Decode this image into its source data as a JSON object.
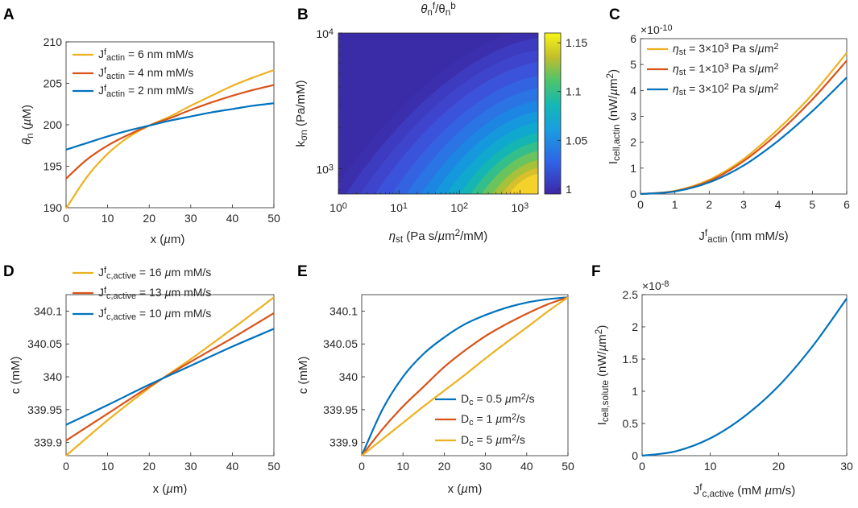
{
  "panels": [
    "A",
    "B",
    "C",
    "D",
    "E",
    "F"
  ],
  "colors": {
    "yellow": "#EDB120",
    "red": "#D95319",
    "blue": "#0072BD",
    "axis": "#262626"
  },
  "chart_data": [
    {
      "id": "A",
      "type": "line",
      "xlabel": "x (µm)",
      "ylabel": "θn (µM)",
      "xlim": [
        0,
        50
      ],
      "ylim": [
        190,
        210
      ],
      "xticks": [
        0,
        10,
        20,
        30,
        40,
        50
      ],
      "yticks": [
        190,
        195,
        200,
        205,
        210
      ],
      "legend_location": "top-left",
      "series": [
        {
          "name": "J^f_actin = 6 nm mM/s",
          "color": "#EDB120",
          "x": [
            0,
            5,
            10,
            15,
            20,
            25,
            30,
            35,
            40,
            45,
            50
          ],
          "y": [
            189.9,
            193.7,
            196.5,
            198.5,
            199.9,
            201.0,
            202.3,
            203.5,
            204.7,
            205.7,
            206.6
          ]
        },
        {
          "name": "J^f_actin = 4 nm mM/s",
          "color": "#D95319",
          "x": [
            0,
            5,
            10,
            15,
            20,
            25,
            30,
            35,
            40,
            45,
            50
          ],
          "y": [
            193.5,
            195.8,
            197.5,
            198.8,
            199.9,
            200.8,
            201.8,
            202.7,
            203.5,
            204.2,
            204.8
          ]
        },
        {
          "name": "J^f_actin = 2 nm mM/s",
          "color": "#0072BD",
          "x": [
            0,
            5,
            10,
            15,
            20,
            25,
            30,
            35,
            40,
            45,
            50
          ],
          "y": [
            197.0,
            197.8,
            198.6,
            199.3,
            199.9,
            200.5,
            201.0,
            201.5,
            201.9,
            202.3,
            202.6
          ]
        }
      ]
    },
    {
      "id": "B",
      "type": "heatmap",
      "title": "θn^f/θn^b",
      "xlabel": "ηst (Pa s/µm²/mM)",
      "ylabel": "kσn (Pa/mM)",
      "xscale": "log",
      "yscale": "log",
      "xlim": [
        1,
        2000
      ],
      "ylim": [
        650,
        10000
      ],
      "xticks": [
        "10^0",
        "10^1",
        "10^2",
        "10^3"
      ],
      "yticks": [
        "10^3",
        "10^4"
      ],
      "colorbar": {
        "range": [
          0.995,
          1.16
        ],
        "ticks": [
          "1",
          "1.05",
          "1.1",
          "1.15"
        ]
      }
    },
    {
      "id": "C",
      "type": "line",
      "xlabel": "J^f_actin (nm mM/s)",
      "ylabel": "Icell,actin (nW/µm²)",
      "multiplier": "×10^-10",
      "xlim": [
        0,
        6
      ],
      "ylim": [
        0,
        6
      ],
      "xticks": [
        0,
        1,
        2,
        3,
        4,
        5,
        6
      ],
      "yticks": [
        0,
        1,
        2,
        3,
        4,
        5,
        6
      ],
      "legend_location": "top-left",
      "series": [
        {
          "name": "ηst = 3×10³ Pa s/µm²",
          "color": "#EDB120",
          "x": [
            0,
            1,
            2,
            3,
            4,
            5,
            6
          ],
          "y": [
            0,
            0.12,
            0.55,
            1.35,
            2.5,
            3.85,
            5.45
          ]
        },
        {
          "name": "ηst = 1×10³ Pa s/µm²",
          "color": "#D95319",
          "x": [
            0,
            1,
            2,
            3,
            4,
            5,
            6
          ],
          "y": [
            0,
            0.11,
            0.5,
            1.27,
            2.35,
            3.65,
            5.15
          ]
        },
        {
          "name": "ηst = 3×10² Pa s/µm²",
          "color": "#0072BD",
          "x": [
            0,
            1,
            2,
            3,
            4,
            5,
            6
          ],
          "y": [
            0,
            0.1,
            0.45,
            1.1,
            2.05,
            3.2,
            4.5
          ]
        }
      ]
    },
    {
      "id": "D",
      "type": "line",
      "xlabel": "x (µm)",
      "ylabel": "c (mM)",
      "xlim": [
        0,
        50
      ],
      "ylim": [
        339.88,
        340.125
      ],
      "yticks": [
        339.9,
        339.95,
        340,
        340.05,
        340.1
      ],
      "ytick_labels": [
        "339.9",
        "339.95",
        "340",
        "340.05",
        "340.1"
      ],
      "xticks": [
        0,
        10,
        20,
        30,
        40,
        50
      ],
      "legend_location": "top-left",
      "series": [
        {
          "name": "J^f_c,active = 16 µm mM/s",
          "color": "#EDB120",
          "x": [
            0,
            10,
            20,
            30,
            40,
            50
          ],
          "y": [
            339.88,
            339.934,
            339.983,
            340.027,
            340.073,
            340.121
          ]
        },
        {
          "name": "J^f_c,active = 13 µm mM/s",
          "color": "#D95319",
          "x": [
            0,
            10,
            20,
            30,
            40,
            50
          ],
          "y": [
            339.903,
            339.944,
            339.985,
            340.023,
            340.059,
            340.097
          ]
        },
        {
          "name": "J^f_c,active = 10 µm mM/s",
          "color": "#0072BD",
          "x": [
            0,
            10,
            20,
            30,
            40,
            50
          ],
          "y": [
            339.927,
            339.957,
            339.988,
            340.017,
            340.046,
            340.073
          ]
        }
      ]
    },
    {
      "id": "E",
      "type": "line",
      "xlabel": "x (µm)",
      "ylabel": "c (mM)",
      "xlim": [
        0,
        50
      ],
      "ylim": [
        339.88,
        340.125
      ],
      "yticks": [
        339.9,
        339.95,
        340,
        340.05,
        340.1
      ],
      "ytick_labels": [
        "339.9",
        "339.95",
        "340",
        "340.05",
        "340.1"
      ],
      "xticks": [
        0,
        10,
        20,
        30,
        40,
        50
      ],
      "legend_location": "bottom-right",
      "series": [
        {
          "name": "Dc = 0.5 µm²/s",
          "color": "#0072BD",
          "x": [
            0,
            5,
            10,
            15,
            20,
            25,
            30,
            35,
            40,
            45,
            50
          ],
          "y": [
            339.88,
            339.95,
            340.0,
            340.035,
            340.06,
            340.08,
            340.094,
            340.105,
            340.113,
            340.118,
            340.121
          ]
        },
        {
          "name": "Dc = 1 µm²/s",
          "color": "#D95319",
          "x": [
            0,
            5,
            10,
            15,
            20,
            25,
            30,
            35,
            40,
            45,
            50
          ],
          "y": [
            339.88,
            339.92,
            339.955,
            339.985,
            340.015,
            340.04,
            340.062,
            340.08,
            340.096,
            340.11,
            340.121
          ]
        },
        {
          "name": "Dc = 5 µm²/s",
          "color": "#EDB120",
          "x": [
            0,
            5,
            10,
            15,
            20,
            25,
            30,
            35,
            40,
            45,
            50
          ],
          "y": [
            339.88,
            339.905,
            339.93,
            339.955,
            339.979,
            340.003,
            340.028,
            340.052,
            340.075,
            340.099,
            340.121
          ]
        }
      ]
    },
    {
      "id": "F",
      "type": "line",
      "xlabel": "J^f_c,active (mM µm/s)",
      "ylabel": "Icell,solute (nW/µm²)",
      "multiplier": "×10^-8",
      "xlim": [
        0,
        30
      ],
      "ylim": [
        0,
        2.5
      ],
      "xticks": [
        0,
        10,
        20,
        30
      ],
      "yticks": [
        0,
        0.5,
        1,
        1.5,
        2,
        2.5
      ],
      "series": [
        {
          "name": "Icell,solute",
          "color": "#0072BD",
          "x": [
            0,
            5,
            10,
            15,
            20,
            25,
            30
          ],
          "y": [
            0,
            0.07,
            0.27,
            0.61,
            1.08,
            1.7,
            2.44
          ]
        }
      ]
    }
  ]
}
